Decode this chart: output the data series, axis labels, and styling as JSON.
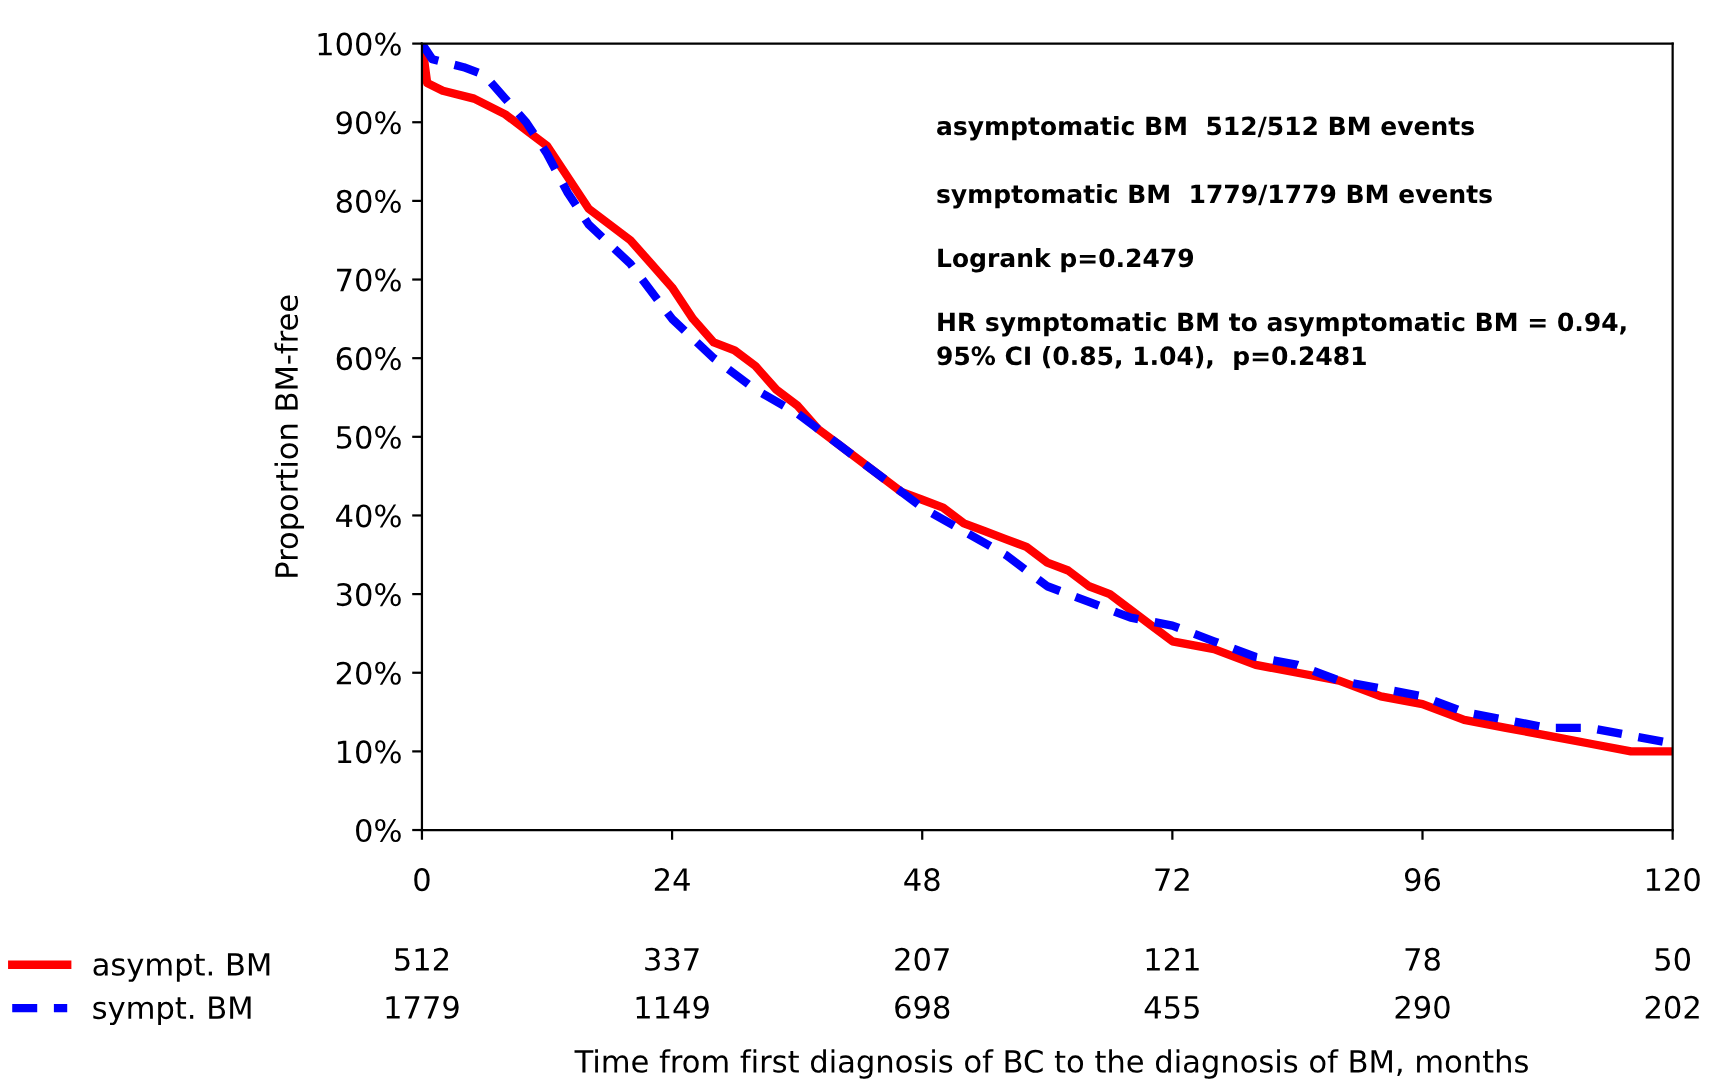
{
  "chart_data": {
    "type": "line",
    "ylabel": "Proportion BM-free",
    "xlim": [
      0,
      120
    ],
    "xticks": [
      0,
      24,
      48,
      72,
      96,
      120
    ],
    "ylim": [
      0,
      100
    ],
    "yticks": [
      {
        "value": 0,
        "label": "0%"
      },
      {
        "value": 10,
        "label": "10%"
      },
      {
        "value": 20,
        "label": "20%"
      },
      {
        "value": 30,
        "label": "30%"
      },
      {
        "value": 40,
        "label": "40%"
      },
      {
        "value": 50,
        "label": "50%"
      },
      {
        "value": 60,
        "label": "60%"
      },
      {
        "value": 70,
        "label": "70%"
      },
      {
        "value": 80,
        "label": "80%"
      },
      {
        "value": 90,
        "label": "90%"
      },
      {
        "value": 100,
        "label": "100%"
      }
    ],
    "legend": "bottom left",
    "grid": false,
    "series": [
      {
        "name": "asympt. BM",
        "color": "#ff0000",
        "line_style": "solid",
        "x": [
          0,
          0.5,
          2,
          5,
          8,
          10,
          12,
          14,
          16,
          20,
          22,
          24,
          26,
          28,
          30,
          32,
          34,
          36,
          38,
          40,
          42,
          44,
          46,
          48,
          50,
          52,
          54,
          56,
          58,
          60,
          62,
          64,
          66,
          68,
          70,
          72,
          76,
          80,
          84,
          88,
          92,
          96,
          100,
          104,
          108,
          112,
          116,
          120
        ],
        "values": [
          100,
          95,
          94,
          93,
          91,
          89,
          87,
          83,
          79,
          75,
          72,
          69,
          65,
          62,
          61,
          59,
          56,
          54,
          51,
          49,
          47,
          45,
          43,
          42,
          41,
          39,
          38,
          37,
          36,
          34,
          33,
          31,
          30,
          28,
          26,
          24,
          23,
          21,
          20,
          19,
          17,
          16,
          14,
          13,
          12,
          11,
          10,
          10
        ]
      },
      {
        "name": "sympt. BM",
        "color": "#0000ff",
        "line_style": "dashed",
        "x": [
          0,
          1,
          4,
          6,
          8,
          10,
          12,
          14,
          16,
          20,
          24,
          28,
          32,
          36,
          40,
          44,
          48,
          52,
          56,
          60,
          64,
          68,
          72,
          76,
          80,
          84,
          88,
          92,
          96,
          100,
          104,
          108,
          112,
          116,
          120
        ],
        "values": [
          100,
          98,
          97,
          96,
          93,
          90,
          86,
          81,
          77,
          72,
          65,
          60,
          56,
          53,
          49,
          45,
          41,
          38,
          35,
          31,
          29,
          27,
          26,
          24,
          22,
          21,
          19,
          18,
          17,
          15,
          14,
          13,
          13,
          12,
          11
        ]
      }
    ],
    "annotations": [
      "asymptomatic BM  512/512 BM events",
      "symptomatic BM  1779/1779 BM events",
      "Logrank p=0.2479",
      "HR symptomatic BM to asymptomatic BM = 0.94,\n95% CI (0.85, 1.04),  p=0.2481",
      "512",
      "337",
      "207",
      "121",
      "78",
      "50",
      "1779",
      "1149",
      "698",
      "455",
      "290",
      "202",
      "Time from first diagnosis of BC to the diagnosis of BM, months"
    ]
  }
}
